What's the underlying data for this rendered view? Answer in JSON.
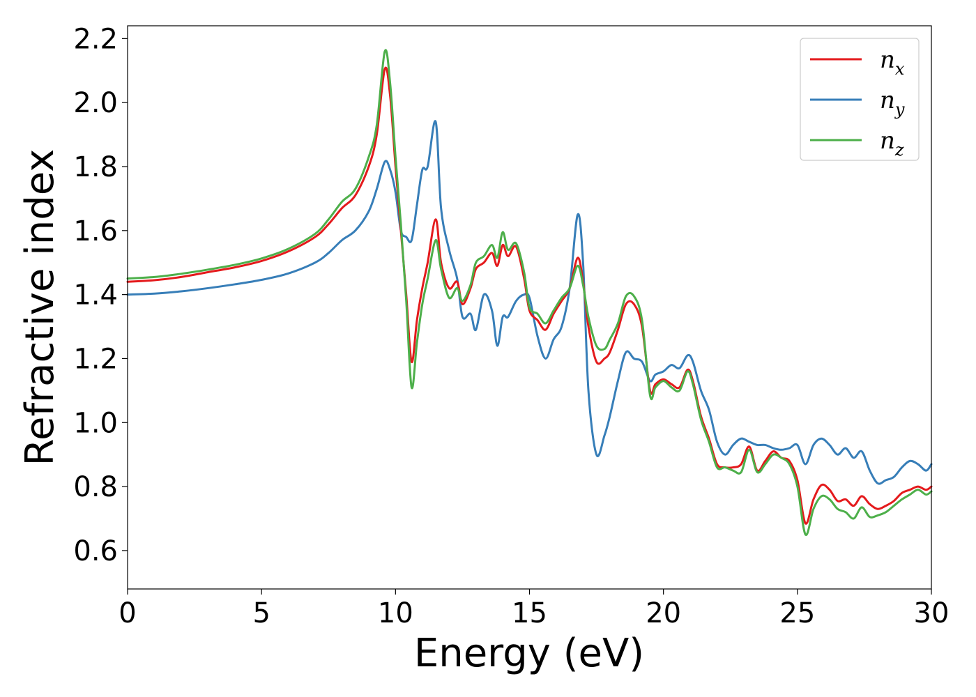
{
  "chart_data": {
    "type": "line",
    "xlabel": "Energy (eV)",
    "ylabel": "Refractive index",
    "xlim": [
      0,
      30
    ],
    "ylim": [
      0.48,
      2.24
    ],
    "xticks": [
      0,
      5,
      10,
      15,
      20,
      25,
      30
    ],
    "xtick_labels": [
      "0",
      "5",
      "10",
      "15",
      "20",
      "25",
      "30"
    ],
    "yticks": [
      0.6,
      0.8,
      1.0,
      1.2,
      1.4,
      1.6,
      1.8,
      2.0,
      2.2
    ],
    "ytick_labels": [
      "0.6",
      "0.8",
      "1.0",
      "1.2",
      "1.4",
      "1.6",
      "1.8",
      "2.0",
      "2.2"
    ],
    "grid": false,
    "legend_position": "top-right",
    "series": [
      {
        "name": "n",
        "subscript": "x",
        "color": "#e41a1c",
        "x": [
          0,
          1,
          2,
          3,
          4,
          5,
          6,
          7,
          7.5,
          8,
          8.5,
          9,
          9.3,
          9.6,
          9.8,
          10,
          10.2,
          10.4,
          10.6,
          10.8,
          11,
          11.2,
          11.5,
          11.7,
          12,
          12.3,
          12.5,
          12.8,
          13,
          13.3,
          13.6,
          13.8,
          14,
          14.2,
          14.5,
          14.8,
          15,
          15.3,
          15.6,
          15.9,
          16.2,
          16.5,
          16.8,
          17,
          17.2,
          17.5,
          17.8,
          18,
          18.3,
          18.6,
          18.9,
          19.2,
          19.5,
          19.7,
          20,
          20.3,
          20.6,
          20.9,
          21.1,
          21.4,
          21.7,
          22,
          22.3,
          22.6,
          22.9,
          23.2,
          23.5,
          23.8,
          24.1,
          24.4,
          24.7,
          25,
          25.3,
          25.6,
          25.9,
          26.2,
          26.5,
          26.8,
          27.1,
          27.4,
          27.7,
          28,
          28.3,
          28.6,
          28.9,
          29.2,
          29.5,
          29.8,
          30
        ],
        "y": [
          1.44,
          1.445,
          1.455,
          1.47,
          1.485,
          1.505,
          1.535,
          1.58,
          1.62,
          1.67,
          1.71,
          1.8,
          1.9,
          2.105,
          2.02,
          1.8,
          1.6,
          1.4,
          1.19,
          1.32,
          1.42,
          1.5,
          1.635,
          1.5,
          1.42,
          1.44,
          1.37,
          1.42,
          1.48,
          1.5,
          1.53,
          1.49,
          1.555,
          1.52,
          1.55,
          1.45,
          1.35,
          1.32,
          1.29,
          1.34,
          1.38,
          1.42,
          1.515,
          1.44,
          1.3,
          1.19,
          1.2,
          1.22,
          1.29,
          1.37,
          1.37,
          1.3,
          1.1,
          1.12,
          1.135,
          1.12,
          1.11,
          1.165,
          1.13,
          1.02,
          0.95,
          0.87,
          0.86,
          0.86,
          0.87,
          0.925,
          0.85,
          0.88,
          0.91,
          0.89,
          0.88,
          0.82,
          0.685,
          0.76,
          0.805,
          0.79,
          0.755,
          0.76,
          0.74,
          0.77,
          0.745,
          0.73,
          0.74,
          0.755,
          0.78,
          0.79,
          0.8,
          0.79,
          0.8
        ]
      },
      {
        "name": "n",
        "subscript": "y",
        "color": "#377eb8",
        "x": [
          0,
          1,
          2,
          3,
          4,
          5,
          6,
          7,
          7.5,
          8,
          8.5,
          9,
          9.3,
          9.6,
          9.8,
          10,
          10.2,
          10.4,
          10.6,
          10.8,
          11,
          11.2,
          11.5,
          11.7,
          12,
          12.3,
          12.5,
          12.8,
          13,
          13.3,
          13.6,
          13.8,
          14,
          14.2,
          14.5,
          14.8,
          15,
          15.3,
          15.6,
          15.9,
          16.2,
          16.5,
          16.8,
          17,
          17.2,
          17.5,
          17.8,
          18,
          18.3,
          18.6,
          18.9,
          19.2,
          19.5,
          19.7,
          20,
          20.3,
          20.6,
          20.9,
          21.1,
          21.4,
          21.7,
          22,
          22.3,
          22.6,
          22.9,
          23.2,
          23.5,
          23.8,
          24.1,
          24.4,
          24.7,
          25,
          25.3,
          25.6,
          25.9,
          26.2,
          26.5,
          26.8,
          27.1,
          27.4,
          27.7,
          28,
          28.3,
          28.6,
          28.9,
          29.2,
          29.5,
          29.8,
          30
        ],
        "y": [
          1.4,
          1.403,
          1.41,
          1.42,
          1.432,
          1.446,
          1.466,
          1.5,
          1.53,
          1.57,
          1.6,
          1.66,
          1.73,
          1.815,
          1.79,
          1.72,
          1.6,
          1.58,
          1.57,
          1.68,
          1.79,
          1.8,
          1.94,
          1.67,
          1.54,
          1.45,
          1.33,
          1.34,
          1.29,
          1.4,
          1.35,
          1.24,
          1.33,
          1.33,
          1.38,
          1.4,
          1.39,
          1.27,
          1.2,
          1.26,
          1.3,
          1.42,
          1.65,
          1.5,
          1.1,
          0.9,
          0.96,
          1.02,
          1.13,
          1.22,
          1.2,
          1.19,
          1.13,
          1.15,
          1.16,
          1.18,
          1.17,
          1.21,
          1.19,
          1.1,
          1.04,
          0.94,
          0.9,
          0.93,
          0.95,
          0.94,
          0.93,
          0.93,
          0.92,
          0.915,
          0.92,
          0.93,
          0.87,
          0.93,
          0.95,
          0.93,
          0.9,
          0.92,
          0.89,
          0.91,
          0.85,
          0.81,
          0.82,
          0.83,
          0.86,
          0.88,
          0.87,
          0.85,
          0.87
        ]
      },
      {
        "name": "n",
        "subscript": "z",
        "color": "#4daf4a",
        "x": [
          0,
          1,
          2,
          3,
          4,
          5,
          6,
          7,
          7.5,
          8,
          8.5,
          9,
          9.3,
          9.6,
          9.8,
          10,
          10.2,
          10.4,
          10.6,
          10.8,
          11,
          11.2,
          11.5,
          11.7,
          12,
          12.3,
          12.5,
          12.8,
          13,
          13.3,
          13.6,
          13.8,
          14,
          14.2,
          14.5,
          14.8,
          15,
          15.3,
          15.6,
          15.9,
          16.2,
          16.5,
          16.8,
          17,
          17.2,
          17.5,
          17.8,
          18,
          18.3,
          18.6,
          18.9,
          19.2,
          19.5,
          19.7,
          20,
          20.3,
          20.6,
          20.9,
          21.1,
          21.4,
          21.7,
          22,
          22.3,
          22.6,
          22.9,
          23.2,
          23.5,
          23.8,
          24.1,
          24.4,
          24.7,
          25,
          25.3,
          25.6,
          25.9,
          26.2,
          26.5,
          26.8,
          27.1,
          27.4,
          27.7,
          28,
          28.3,
          28.6,
          28.9,
          29.2,
          29.5,
          29.8,
          30
        ],
        "y": [
          1.45,
          1.455,
          1.465,
          1.478,
          1.493,
          1.513,
          1.543,
          1.59,
          1.635,
          1.69,
          1.73,
          1.83,
          1.93,
          2.16,
          2.06,
          1.83,
          1.62,
          1.38,
          1.11,
          1.25,
          1.37,
          1.45,
          1.57,
          1.48,
          1.39,
          1.42,
          1.38,
          1.43,
          1.5,
          1.52,
          1.555,
          1.515,
          1.595,
          1.54,
          1.56,
          1.47,
          1.36,
          1.34,
          1.31,
          1.35,
          1.39,
          1.42,
          1.49,
          1.43,
          1.33,
          1.24,
          1.23,
          1.26,
          1.31,
          1.395,
          1.395,
          1.32,
          1.085,
          1.11,
          1.13,
          1.11,
          1.1,
          1.16,
          1.12,
          1.01,
          0.94,
          0.86,
          0.86,
          0.85,
          0.845,
          0.915,
          0.845,
          0.87,
          0.9,
          0.89,
          0.87,
          0.8,
          0.65,
          0.73,
          0.77,
          0.76,
          0.73,
          0.72,
          0.7,
          0.735,
          0.705,
          0.71,
          0.72,
          0.74,
          0.76,
          0.775,
          0.79,
          0.775,
          0.785
        ]
      }
    ]
  }
}
